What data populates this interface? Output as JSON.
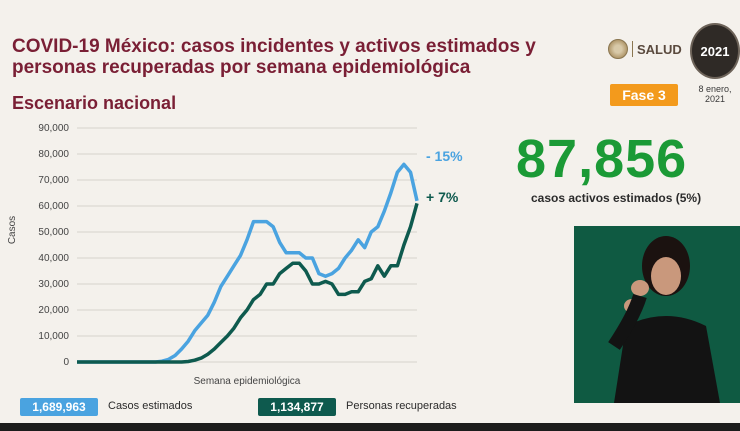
{
  "title": "COVID-19 México: casos incidentes y activos estimados y personas recuperadas por semana epidemiológica",
  "subtitle": "Escenario nacional",
  "logos": {
    "salud": "SALUD",
    "seal_year": "2021"
  },
  "phase_badge": "Fase 3",
  "date": "8 enero, 2021",
  "active_cases": {
    "value": "87,856",
    "caption": "casos activos estimados (5%)"
  },
  "legend": {
    "estimated_value": "1,689,963",
    "estimated_label": "Casos estimados",
    "recovered_value": "1,134,877",
    "recovered_label": "Personas recuperadas"
  },
  "chart_data": {
    "type": "line",
    "xlabel": "Semana epidemiológica",
    "ylabel": "Casos",
    "ylim": [
      0,
      90000
    ],
    "yticks": [
      0,
      10000,
      20000,
      30000,
      40000,
      50000,
      60000,
      70000,
      80000,
      90000
    ],
    "ytick_labels": [
      "0",
      "10,000",
      "20,000",
      "30,000",
      "40,000",
      "50,000",
      "60,000",
      "70,000",
      "80,000",
      "90,000"
    ],
    "grid": true,
    "series": [
      {
        "name": "Casos estimados",
        "color": "#4aa3e0",
        "annotation": "- 15%",
        "values": [
          0,
          0,
          0,
          0,
          0,
          0,
          0,
          0,
          0,
          0,
          0,
          0,
          0,
          300,
          1000,
          2500,
          5000,
          8000,
          12000,
          15000,
          18000,
          23000,
          29000,
          33000,
          37000,
          41000,
          47000,
          54000,
          54000,
          54000,
          52000,
          46000,
          42000,
          42000,
          42000,
          40000,
          40000,
          34000,
          33000,
          34000,
          36000,
          40000,
          43000,
          47000,
          44000,
          50000,
          52000,
          58000,
          65000,
          73000,
          76000,
          73000,
          62000
        ]
      },
      {
        "name": "Personas recuperadas",
        "color": "#0e5a4e",
        "annotation": "+ 7%",
        "values": [
          0,
          0,
          0,
          0,
          0,
          0,
          0,
          0,
          0,
          0,
          0,
          0,
          0,
          0,
          0,
          0,
          0,
          200,
          700,
          1500,
          3000,
          5000,
          7500,
          10000,
          13000,
          17000,
          20000,
          24000,
          26000,
          30000,
          30000,
          34000,
          36000,
          38000,
          38000,
          35000,
          30000,
          30000,
          31000,
          30000,
          26000,
          26000,
          27000,
          27000,
          31000,
          32000,
          37000,
          33000,
          37000,
          37000,
          45000,
          52000,
          61000
        ]
      }
    ]
  }
}
